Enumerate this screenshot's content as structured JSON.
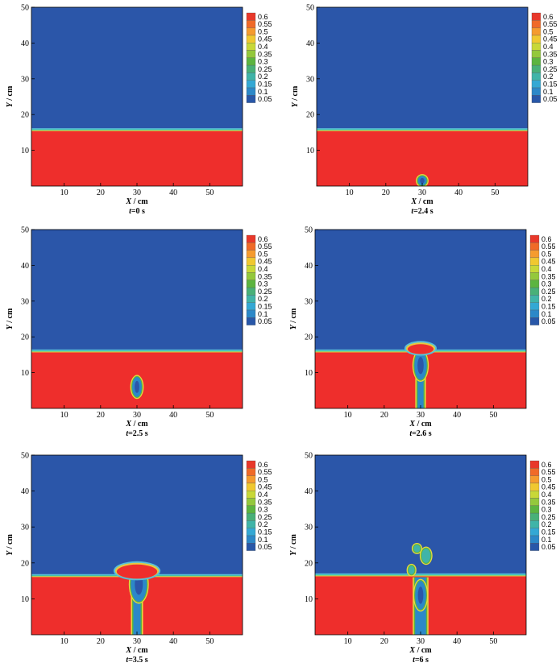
{
  "chart_data": [
    {
      "type": "heatmap",
      "caption": {
        "var": "t",
        "value": "=0 s"
      },
      "xaxis": {
        "var": "X",
        "unit": " / cm",
        "ticks": [
          10,
          20,
          30,
          40,
          50
        ],
        "range": [
          1,
          59
        ]
      },
      "yaxis": {
        "var": "Y",
        "unit": " / cm",
        "ticks": [
          10,
          20,
          30,
          40,
          50
        ],
        "range": [
          0,
          50
        ]
      },
      "interface_y_cm": 15.5,
      "features": []
    },
    {
      "type": "heatmap",
      "caption": {
        "var": "t",
        "value": "=2.4 s"
      },
      "xaxis": {
        "var": "X",
        "unit": " / cm",
        "ticks": [
          10,
          20,
          30,
          40,
          50
        ],
        "range": [
          1,
          59
        ]
      },
      "yaxis": {
        "var": "Y",
        "unit": " / cm",
        "ticks": [
          10,
          20,
          30,
          40,
          50
        ],
        "range": [
          0,
          50
        ]
      },
      "interface_y_cm": 15.5,
      "features": [
        {
          "kind": "bubble",
          "x": 30,
          "y": 1.5,
          "rx": 1.2,
          "ry": 1.3
        }
      ]
    },
    {
      "type": "heatmap",
      "caption": {
        "var": "t",
        "value": "=2.5 s"
      },
      "xaxis": {
        "var": "X",
        "unit": " / cm",
        "ticks": [
          10,
          20,
          30,
          40,
          50
        ],
        "range": [
          1,
          59
        ]
      },
      "yaxis": {
        "var": "Y",
        "unit": " / cm",
        "ticks": [
          10,
          20,
          30,
          40,
          50
        ],
        "range": [
          0,
          50
        ]
      },
      "interface_y_cm": 15.8,
      "features": [
        {
          "kind": "bubble",
          "x": 30,
          "y": 6,
          "rx": 1.3,
          "ry": 2.8
        }
      ]
    },
    {
      "type": "heatmap",
      "caption": {
        "var": "t",
        "value": "=2.6 s"
      },
      "xaxis": {
        "var": "X",
        "unit": " / cm",
        "ticks": [
          10,
          20,
          30,
          40,
          50
        ],
        "range": [
          1,
          59
        ]
      },
      "yaxis": {
        "var": "Y",
        "unit": " / cm",
        "ticks": [
          10,
          20,
          30,
          40,
          50
        ],
        "range": [
          0,
          50
        ]
      },
      "interface_y_cm": 15.8,
      "features": [
        {
          "kind": "plume",
          "x": 30,
          "y0": 0,
          "y1": 17,
          "w": 1.6
        },
        {
          "kind": "bubble",
          "x": 30,
          "y": 12,
          "rx": 1.7,
          "ry": 4
        },
        {
          "kind": "bulge",
          "x": 30,
          "y": 16.8,
          "rx": 4,
          "ry": 1.6
        }
      ]
    },
    {
      "type": "heatmap",
      "caption": {
        "var": "t",
        "value": "=3.5 s"
      },
      "xaxis": {
        "var": "X",
        "unit": " / cm",
        "ticks": [
          10,
          20,
          30,
          40,
          50
        ],
        "range": [
          1,
          59
        ]
      },
      "yaxis": {
        "var": "Y",
        "unit": " / cm",
        "ticks": [
          10,
          20,
          30,
          40,
          50
        ],
        "range": [
          0,
          50
        ]
      },
      "interface_y_cm": 16.2,
      "features": [
        {
          "kind": "plume",
          "x": 30,
          "y0": 0,
          "y1": 18,
          "w": 2
        },
        {
          "kind": "bubble",
          "x": 30.5,
          "y": 14,
          "rx": 2.2,
          "ry": 4.8
        },
        {
          "kind": "bulge",
          "x": 30,
          "y": 17.8,
          "rx": 6,
          "ry": 2.2
        }
      ]
    },
    {
      "type": "heatmap",
      "caption": {
        "var": "t",
        "value": "=6 s"
      },
      "xaxis": {
        "var": "X",
        "unit": " / cm",
        "ticks": [
          10,
          20,
          30,
          40,
          50
        ],
        "range": [
          1,
          59
        ]
      },
      "yaxis": {
        "var": "Y",
        "unit": " / cm",
        "ticks": [
          10,
          20,
          30,
          40,
          50
        ],
        "range": [
          0,
          50
        ]
      },
      "interface_y_cm": 16.4,
      "features": [
        {
          "kind": "plume",
          "x": 30,
          "y0": 0,
          "y1": 16,
          "w": 3
        },
        {
          "kind": "bubble",
          "x": 30,
          "y": 11,
          "rx": 1.5,
          "ry": 4
        },
        {
          "kind": "puff",
          "x": 31.5,
          "y": 22,
          "rx": 1.2,
          "ry": 2
        },
        {
          "kind": "puff",
          "x": 29,
          "y": 24,
          "rx": 0.9,
          "ry": 1
        },
        {
          "kind": "puff",
          "x": 27.5,
          "y": 18,
          "rx": 0.8,
          "ry": 1.2
        }
      ]
    }
  ],
  "legend": {
    "levels": [
      "0.6",
      "0.55",
      "0.5",
      "0.45",
      "0.4",
      "0.35",
      "0.3",
      "0.25",
      "0.2",
      "0.15",
      "0.1",
      "0.05"
    ],
    "colors": [
      "#e8382a",
      "#f06a28",
      "#f59b2e",
      "#f0c830",
      "#c8d838",
      "#94c83c",
      "#5cb440",
      "#48b078",
      "#40b4a8",
      "#34a8d4",
      "#2c88c8",
      "#2857a8"
    ]
  },
  "colors": {
    "fluid_high": "#ee2e2c",
    "fluid_low": "#2b56a9",
    "interface": "#3dc3a5"
  }
}
